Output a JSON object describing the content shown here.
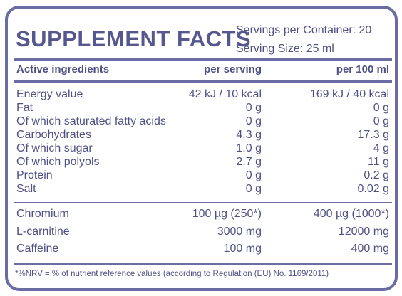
{
  "title": "SUPPLEMENT FACTS",
  "servings_per_container": "Servings per Container: 20",
  "serving_size": "Serving Size: 25 ml",
  "header": {
    "col1": "Active ingredients",
    "col2": "per serving",
    "col3": "per 100 ml"
  },
  "nutrients": [
    {
      "name": "Energy value",
      "per_serving": "42 kJ / 10 kcal",
      "per_100": "169 kJ / 40 kcal"
    },
    {
      "name": "Fat",
      "per_serving": "0 g",
      "per_100": "0 g"
    },
    {
      "name": "Of which saturated fatty acids",
      "per_serving": "0 g",
      "per_100": "0 g"
    },
    {
      "name": "Carbohydrates",
      "per_serving": "4.3 g",
      "per_100": "17.3 g"
    },
    {
      "name": "Of which sugar",
      "per_serving": "1.0 g",
      "per_100": "4 g"
    },
    {
      "name": "Of which polyols",
      "per_serving": "2.7 g",
      "per_100": "11 g"
    },
    {
      "name": "Protein",
      "per_serving": "0 g",
      "per_100": "0.2 g"
    },
    {
      "name": "Salt",
      "per_serving": "0 g",
      "per_100": "0.02 g"
    }
  ],
  "actives": [
    {
      "name": "Chromium",
      "per_serving": "100 µg  (250*)",
      "per_100": "400 µg (1000*)"
    },
    {
      "name": "L-carnitine",
      "per_serving": "3000 mg",
      "per_100": "12000 mg"
    },
    {
      "name": "Caffeine",
      "per_serving": "100 mg",
      "per_100": "400 mg"
    }
  ],
  "footnote": "*%NRV = % of nutrient reference values (according to Regulation (EU) No. 1169/2011)",
  "colors": {
    "ink": "#4f5185",
    "border": "#6a6ca3"
  }
}
